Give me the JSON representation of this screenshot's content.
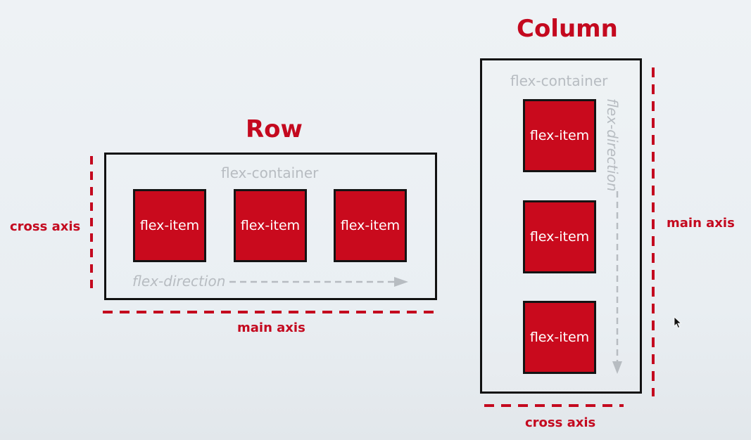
{
  "row": {
    "title": "Row",
    "container_label": "flex-container",
    "items": [
      "flex-item",
      "flex-item",
      "flex-item"
    ],
    "direction_label": "flex-direction",
    "main_axis_label": "main axis",
    "cross_axis_label": "cross axis"
  },
  "column": {
    "title": "Column",
    "container_label": "flex-container",
    "items": [
      "flex-item",
      "flex-item",
      "flex-item"
    ],
    "direction_label": "flex-direction",
    "main_axis_label": "main axis",
    "cross_axis_label": "cross axis"
  },
  "colors": {
    "accent_red": "#c4091f",
    "item_fill": "#c90a1d",
    "border": "#111111",
    "muted_gray": "#b7bcc1",
    "background": "#eef2f5"
  }
}
